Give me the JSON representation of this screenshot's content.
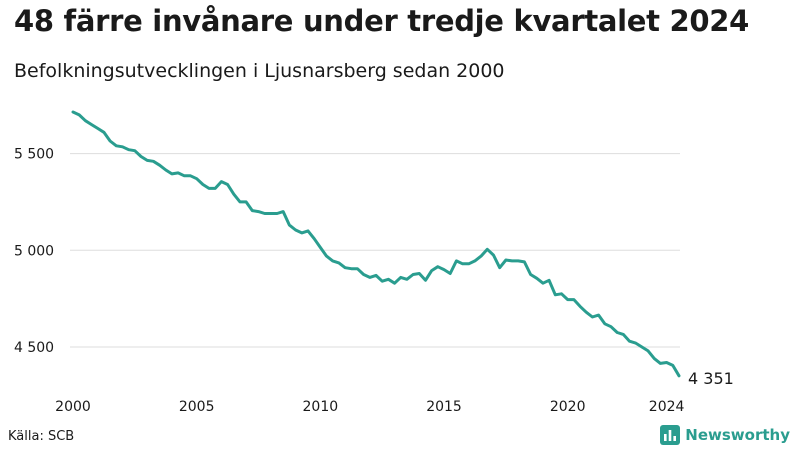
{
  "title": "48 färre invånare under tredje kvartalet 2024",
  "subtitle": "Befolkningsutvecklingen i Ljusnarsberg sedan 2000",
  "source": "Källa: SCB",
  "brand": {
    "name": "Newsworthy",
    "icon": "bar-chart-logo-icon",
    "color": "#2a9d8f"
  },
  "colors": {
    "line": "#2a9d8f",
    "grid": "#dddddd"
  },
  "chart_data": {
    "type": "line",
    "title": "48 färre invånare under tredje kvartalet 2024",
    "subtitle": "Befolkningsutvecklingen i Ljusnarsberg sedan 2000",
    "xlabel": "",
    "ylabel": "",
    "xlim": [
      2000,
      2024.75
    ],
    "ylim": [
      4300,
      5750
    ],
    "grid": true,
    "y_ticks": [
      4500,
      5000,
      5500
    ],
    "y_tick_labels": [
      "4 500",
      "5 000",
      "5 500"
    ],
    "x_ticks": [
      2000,
      2005,
      2010,
      2015,
      2020,
      2024
    ],
    "x_tick_labels": [
      "2000",
      "2005",
      "2010",
      "2015",
      "2020",
      "2024"
    ],
    "end_label": "4 351",
    "series": [
      {
        "x": [
          2000.0,
          2000.25,
          2000.5,
          2000.75,
          2001.0,
          2001.25,
          2001.5,
          2001.75,
          2002.0,
          2002.25,
          2002.5,
          2002.75,
          2003.0,
          2003.25,
          2003.5,
          2003.75,
          2004.0,
          2004.25,
          2004.5,
          2004.75,
          2005.0,
          2005.25,
          2005.5,
          2005.75,
          2006.0,
          2006.25,
          2006.5,
          2006.75,
          2007.0,
          2007.25,
          2007.5,
          2007.75,
          2008.0,
          2008.25,
          2008.5,
          2008.75,
          2009.0,
          2009.25,
          2009.5,
          2009.75,
          2010.0,
          2010.25,
          2010.5,
          2010.75,
          2011.0,
          2011.25,
          2011.5,
          2011.75,
          2012.0,
          2012.25,
          2012.5,
          2012.75,
          2013.0,
          2013.25,
          2013.5,
          2013.75,
          2014.0,
          2014.25,
          2014.5,
          2014.75,
          2015.0,
          2015.25,
          2015.5,
          2015.75,
          2016.0,
          2016.25,
          2016.5,
          2016.75,
          2017.0,
          2017.25,
          2017.5,
          2017.75,
          2018.0,
          2018.25,
          2018.5,
          2018.75,
          2019.0,
          2019.25,
          2019.5,
          2019.75,
          2020.0,
          2020.25,
          2020.5,
          2020.75,
          2021.0,
          2021.25,
          2021.5,
          2021.75,
          2022.0,
          2022.25,
          2022.5,
          2022.75,
          2023.0,
          2023.25,
          2023.5,
          2023.75,
          2024.0,
          2024.25,
          2024.5
        ],
        "values": [
          5715,
          5700,
          5670,
          5650,
          5630,
          5610,
          5565,
          5540,
          5535,
          5520,
          5515,
          5485,
          5465,
          5460,
          5440,
          5415,
          5395,
          5400,
          5385,
          5385,
          5370,
          5340,
          5320,
          5320,
          5355,
          5340,
          5290,
          5250,
          5250,
          5205,
          5200,
          5190,
          5190,
          5190,
          5200,
          5130,
          5105,
          5090,
          5100,
          5060,
          5015,
          4970,
          4945,
          4935,
          4910,
          4905,
          4905,
          4875,
          4860,
          4870,
          4840,
          4850,
          4830,
          4860,
          4850,
          4875,
          4880,
          4845,
          4895,
          4915,
          4900,
          4880,
          4945,
          4930,
          4930,
          4945,
          4970,
          5005,
          4975,
          4910,
          4950,
          4945,
          4945,
          4940,
          4875,
          4855,
          4830,
          4845,
          4770,
          4775,
          4745,
          4745,
          4710,
          4680,
          4655,
          4665,
          4620,
          4605,
          4575,
          4565,
          4530,
          4520,
          4500,
          4480,
          4440,
          4415,
          4420,
          4405,
          4351
        ]
      }
    ]
  }
}
